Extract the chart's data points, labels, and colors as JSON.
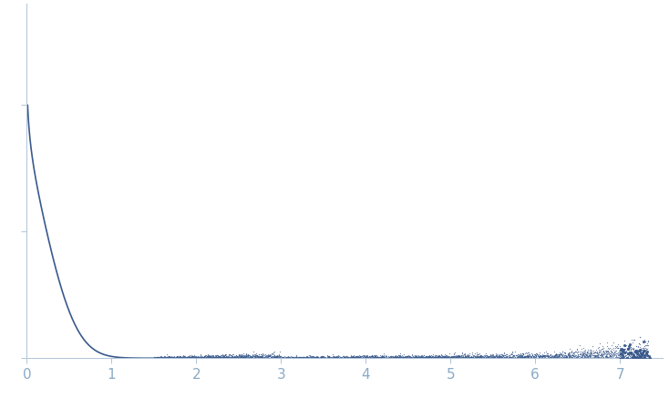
{
  "title": "",
  "xlabel": "",
  "ylabel": "",
  "xlim": [
    0.0,
    7.5
  ],
  "ylim": [
    0.0,
    1.4
  ],
  "x_ticks": [
    0,
    1,
    2,
    3,
    4,
    5,
    6,
    7
  ],
  "background_color": "#ffffff",
  "line_color": "#3a5a8c",
  "scatter_color": "#3a5a8c",
  "figsize": [
    7.34,
    4.37
  ],
  "dpi": 100
}
